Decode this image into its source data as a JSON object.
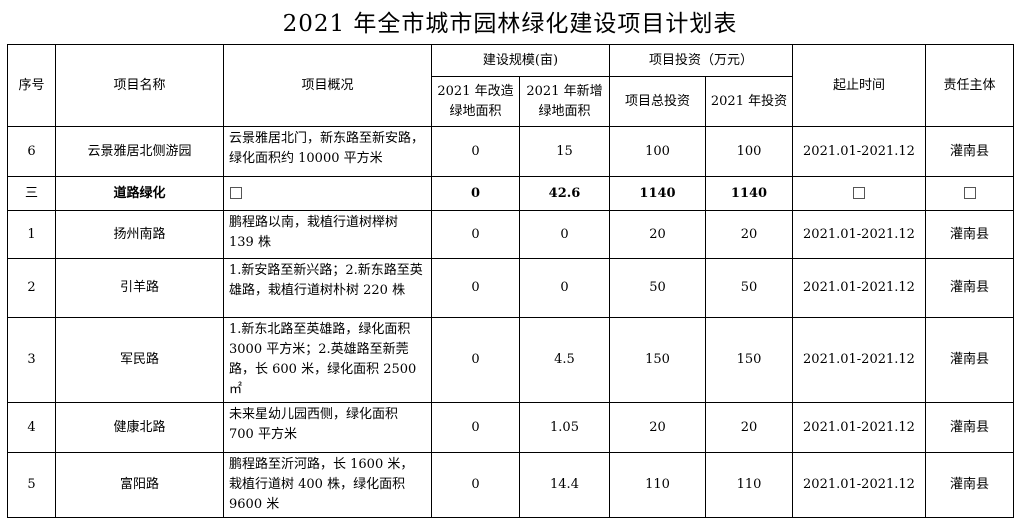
{
  "title": "2021 年全市城市园林绿化建设项目计划表",
  "headers": {
    "seq": "序号",
    "name": "项目名称",
    "desc": "项目概况",
    "scale": "建设规模(亩)",
    "scale_a": "2021 年改造绿地面积",
    "scale_b": "2021 年新增绿地面积",
    "invest": "项目投资（万元）",
    "invest_total": "项目总投资",
    "invest_2021": "2021 年投资",
    "period": "起止时间",
    "owner": "责任主体"
  },
  "rows": [
    {
      "seq": "6",
      "name": "云景雅居北侧游园",
      "desc": "云景雅居北门，新东路至新安路，绿化面积约 10000 平方米",
      "a": "0",
      "b": "15",
      "total": "100",
      "y2021": "100",
      "period": "2021.01-2021.12",
      "owner": "灌南县"
    },
    {
      "seq": "三",
      "name": "道路绿化",
      "desc": "",
      "a": "0",
      "b": "42.6",
      "total": "1140",
      "y2021": "1140",
      "period": "",
      "owner": ""
    },
    {
      "seq": "1",
      "name": "扬州南路",
      "desc": "鹏程路以南，栽植行道树榉树 139 株",
      "a": "0",
      "b": "0",
      "total": "20",
      "y2021": "20",
      "period": "2021.01-2021.12",
      "owner": "灌南县"
    },
    {
      "seq": "2",
      "name": "引羊路",
      "desc": "1.新安路至新兴路；2.新东路至英雄路，栽植行道树朴树 220 株",
      "a": "0",
      "b": "0",
      "total": "50",
      "y2021": "50",
      "period": "2021.01-2021.12",
      "owner": "灌南县"
    },
    {
      "seq": "3",
      "name": "军民路",
      "desc": "1.新东北路至英雄路，绿化面积 3000 平方米；2.英雄路至新莞路，长 600 米，绿化面积 2500 ㎡",
      "a": "0",
      "b": "4.5",
      "total": "150",
      "y2021": "150",
      "period": "2021.01-2021.12",
      "owner": "灌南县"
    },
    {
      "seq": "4",
      "name": "健康北路",
      "desc": "未来星幼儿园西侧，绿化面积 700 平方米",
      "a": "0",
      "b": "1.05",
      "total": "20",
      "y2021": "20",
      "period": "2021.01-2021.12",
      "owner": "灌南县"
    },
    {
      "seq": "5",
      "name": "富阳路",
      "desc": "鹏程路至沂河路，长 1600 米，栽植行道树 400 株，绿化面积 9600 米",
      "a": "0",
      "b": "14.4",
      "total": "110",
      "y2021": "110",
      "period": "2021.01-2021.12",
      "owner": "灌南县"
    }
  ]
}
